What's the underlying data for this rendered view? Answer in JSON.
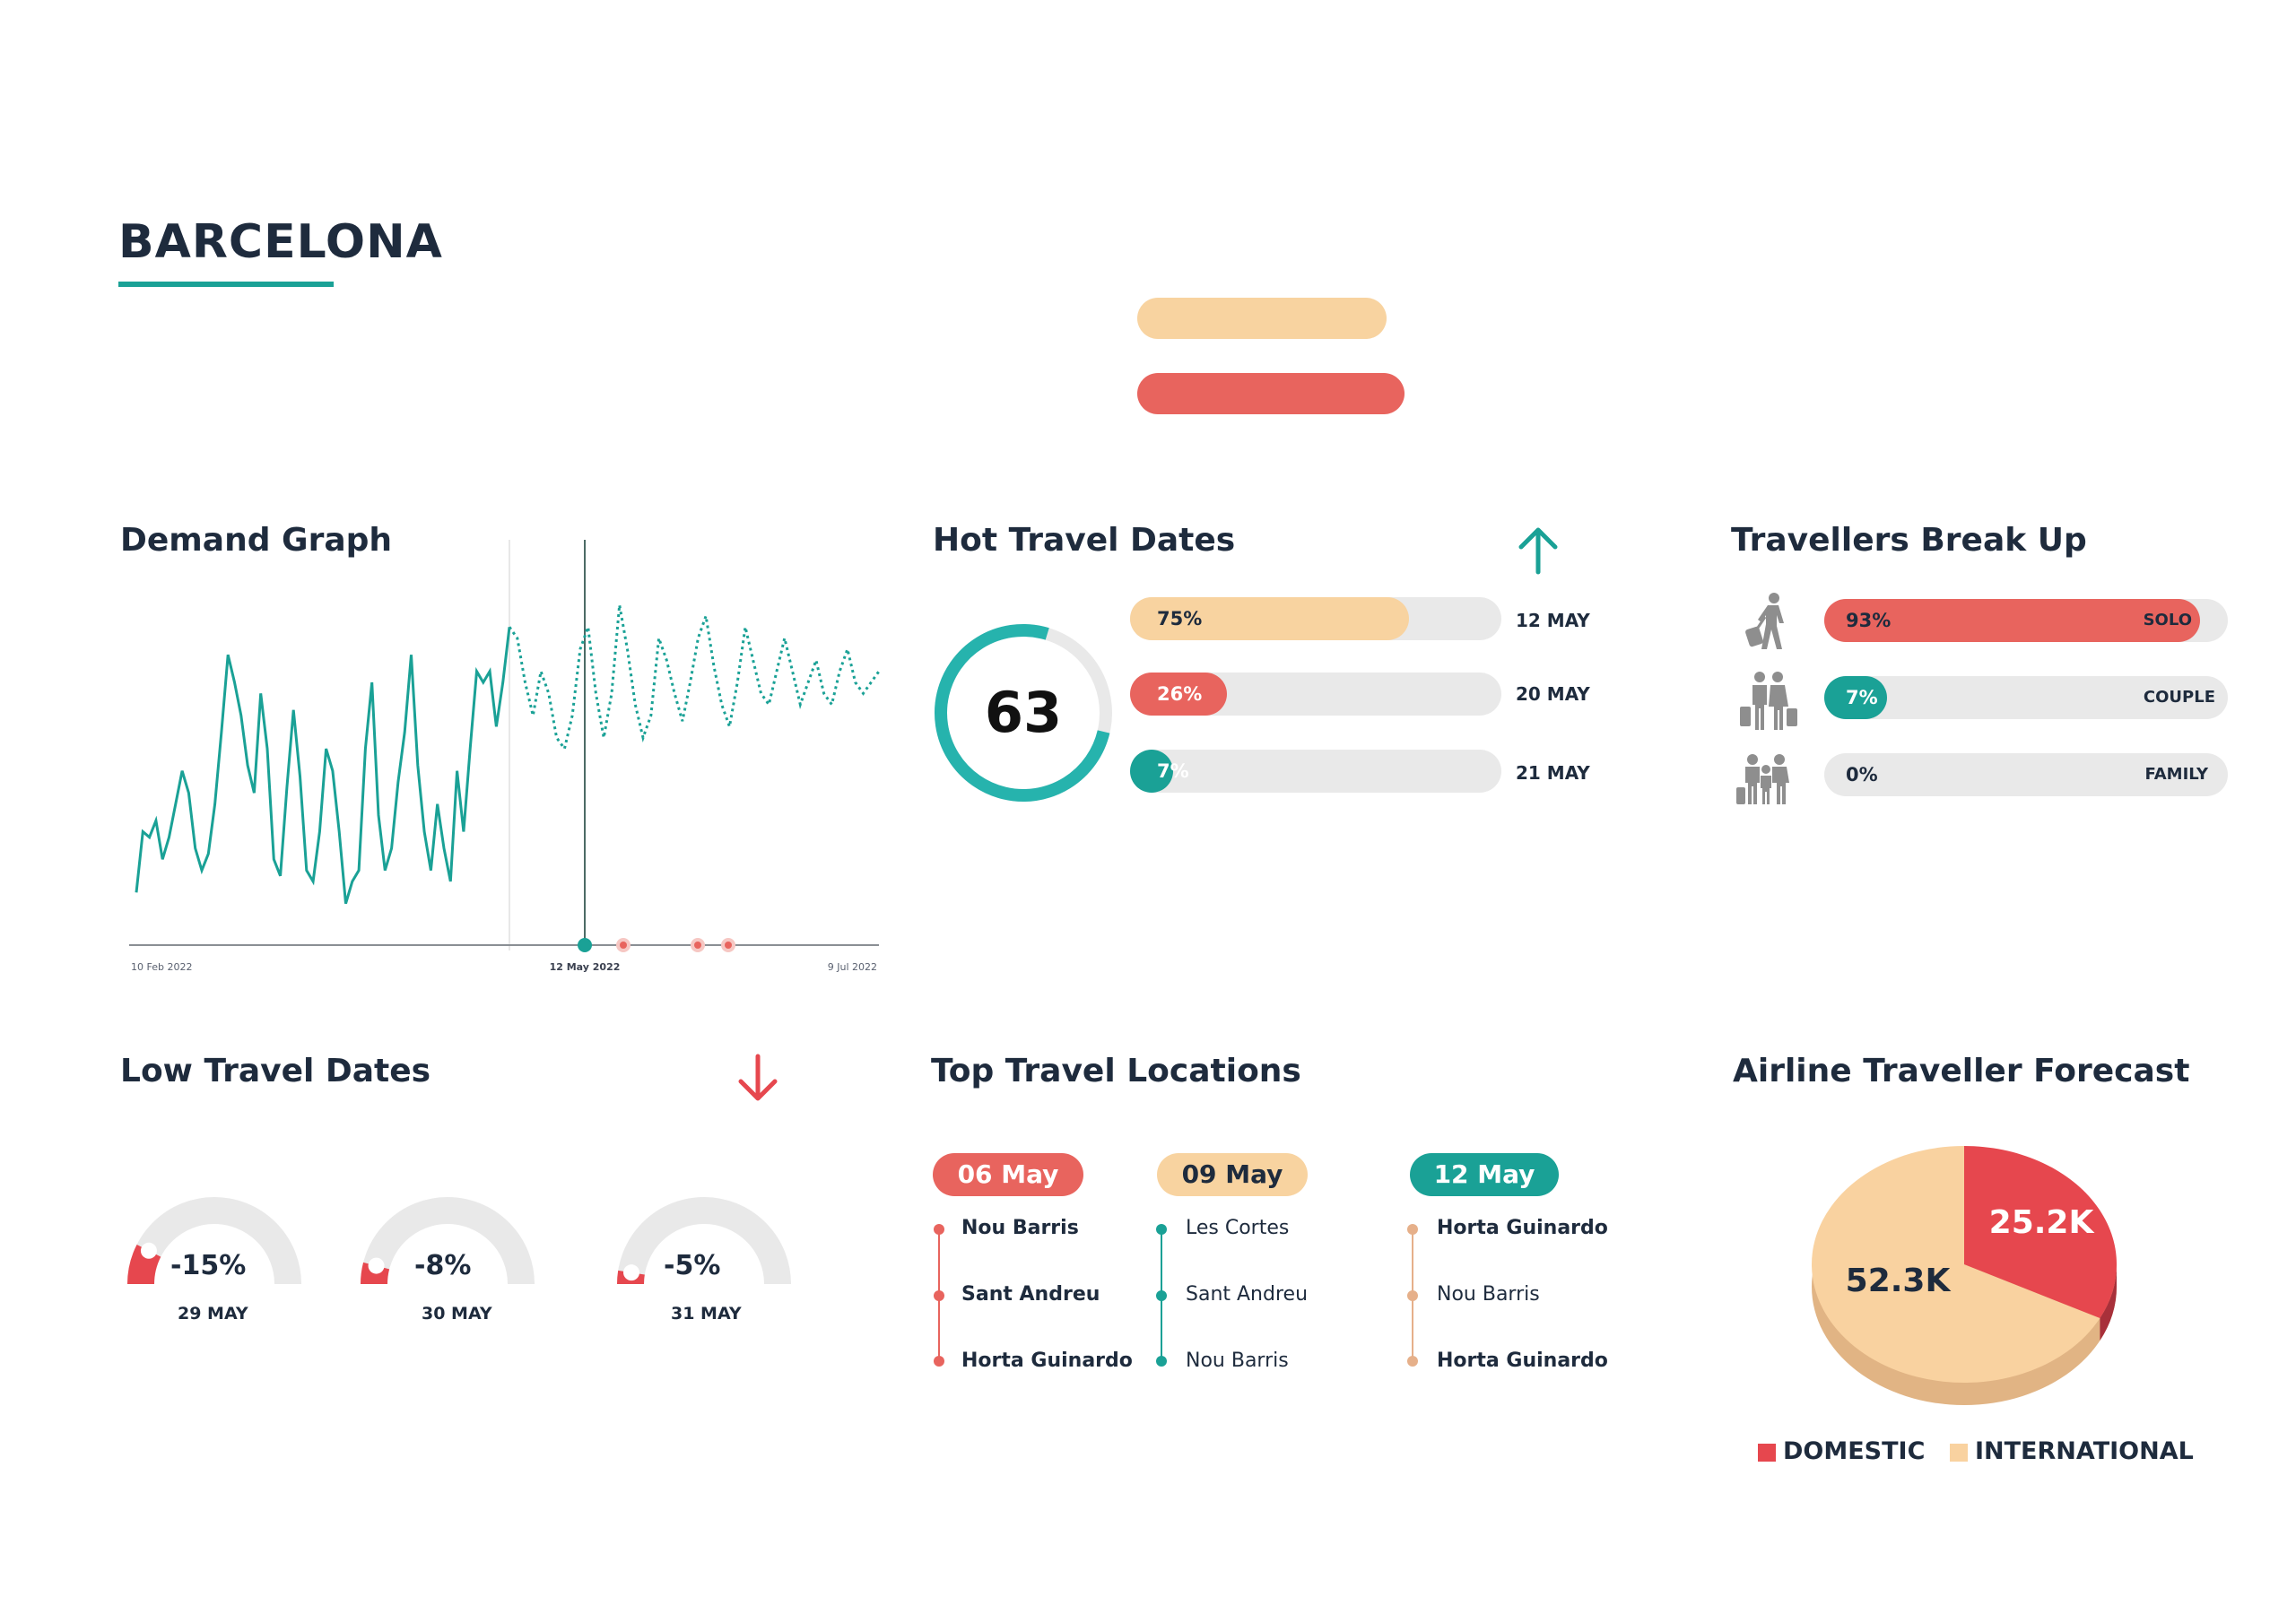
{
  "page": {
    "title": "BARCELONA"
  },
  "colors": {
    "teal": "#1aa196",
    "red": "#e8645e",
    "peach": "#f8d3a0",
    "navy": "#1e2b3d",
    "track": "#e9e9e9",
    "pieRed": "#e6474e",
    "piePeach": "#f9d2a0"
  },
  "demand": {
    "title": "Demand Graph",
    "x_labels": [
      "10 Feb 2022",
      "12 May 2022",
      "9 Jul 2022"
    ]
  },
  "hot": {
    "title": "Hot Travel Dates",
    "arrow_icon": "arrow-up-icon",
    "score": "63",
    "score_fraction": 0.76,
    "bars": [
      {
        "pct": "75%",
        "value": 0.75,
        "date": "12 MAY",
        "color": "#f8d3a0",
        "text_color": "#1e2b3d"
      },
      {
        "pct": "26%",
        "value": 0.26,
        "date": "20 MAY",
        "color": "#e8645e",
        "text_color": "#ffffff"
      },
      {
        "pct": "7%",
        "value": 0.07,
        "date": "21 MAY",
        "color": "#1aa196",
        "text_color": "#ffffff"
      }
    ]
  },
  "travellers": {
    "title": "Travellers Break Up",
    "rows": [
      {
        "icon": "solo-traveller-icon",
        "pct": "93%",
        "value": 0.93,
        "label": "SOLO",
        "color": "#e8645e"
      },
      {
        "icon": "couple-travellers-icon",
        "pct": "7%",
        "value": 0.07,
        "label": "COUPLE",
        "color": "#1aa196"
      },
      {
        "icon": "family-travellers-icon",
        "pct": "0%",
        "value": 0,
        "label": "FAMILY",
        "color": "#1aa196"
      }
    ]
  },
  "low": {
    "title": "Low Travel Dates",
    "arrow_icon": "arrow-down-icon",
    "gauges": [
      {
        "value": "-15%",
        "level": 0.15,
        "date": "29 MAY"
      },
      {
        "value": "-8%",
        "level": 0.08,
        "date": "30 MAY"
      },
      {
        "value": "-5%",
        "level": 0.05,
        "date": "31 MAY"
      }
    ]
  },
  "locations": {
    "title": "Top Travel Locations",
    "columns": [
      {
        "date": "06 May",
        "color": "#e8645e",
        "text_color": "#ffffff",
        "items": [
          "Nou Barris",
          "Sant Andreu",
          "Horta Guinardo"
        ]
      },
      {
        "date": "09 May",
        "color": "#f8d3a0",
        "text_color": "#1e2b3d",
        "items": [
          "Les Cortes",
          "Sant Andreu",
          "Nou Barris"
        ]
      },
      {
        "date": "12 May",
        "color": "#1aa196",
        "text_color": "#ffffff",
        "items": [
          "Horta Guinardo",
          "Nou Barris",
          "Horta Guinardo"
        ]
      }
    ]
  },
  "forecast": {
    "title": "Airline Traveller Forecast",
    "domestic_label": "DOMESTIC",
    "international_label": "INTERNATIONAL"
  },
  "chart_data": [
    {
      "type": "line",
      "title": "Demand Graph",
      "x_tick_labels": [
        "10 Feb 2022",
        "12 May 2022",
        "9 Jul 2022"
      ],
      "series": [
        {
          "name": "actual",
          "style": "solid",
          "values": [
            34,
            45,
            44,
            47,
            40,
            44,
            50,
            56,
            52,
            42,
            38,
            41,
            50,
            63,
            77,
            72,
            66,
            57,
            52,
            70,
            60,
            40,
            37,
            53,
            67,
            55,
            38,
            36,
            45,
            60,
            56,
            45,
            32,
            36,
            38,
            60,
            72,
            48,
            38,
            42,
            54,
            63,
            77,
            57,
            45,
            38,
            50,
            42,
            36,
            56,
            45,
            60,
            74,
            72,
            74,
            64,
            72,
            82
          ]
        },
        {
          "name": "forecast",
          "style": "dotted",
          "values": [
            82,
            80,
            72,
            66,
            74,
            70,
            62,
            60,
            66,
            78,
            82,
            70,
            62,
            70,
            86,
            78,
            68,
            62,
            66,
            80,
            76,
            70,
            65,
            72,
            80,
            84,
            75,
            68,
            64,
            72,
            82,
            76,
            70,
            68,
            74,
            80,
            74,
            68,
            72,
            76,
            70,
            68,
            74,
            78,
            72,
            70,
            72,
            74
          ]
        }
      ],
      "event_markers": [
        {
          "label": "12 May 2022",
          "color": "#1aa196"
        },
        {
          "color": "#e8645e"
        },
        {
          "color": "#e8645e"
        },
        {
          "color": "#e8645e"
        }
      ]
    },
    {
      "type": "pie",
      "title": "Airline Traveller Forecast",
      "categories": [
        "DOMESTIC",
        "INTERNATIONAL"
      ],
      "values": [
        25.2,
        52.3
      ],
      "value_labels": [
        "25.2K",
        "52.3K"
      ],
      "colors": [
        "#e6474e",
        "#f9d2a0"
      ]
    }
  ]
}
